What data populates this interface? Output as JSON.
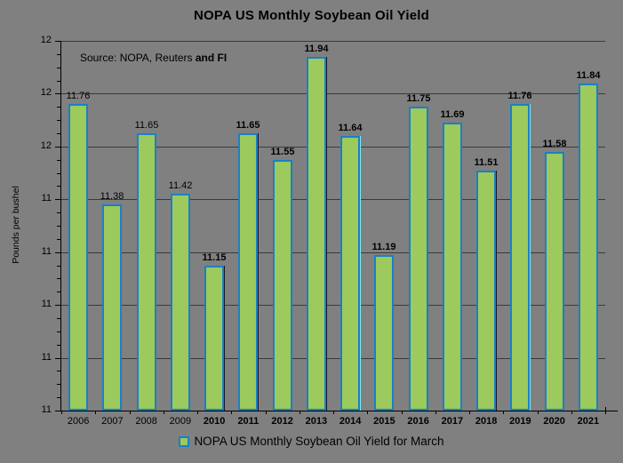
{
  "window": {
    "title": "NOPA US Monthly Soybean Oil Yield"
  },
  "chart_data": {
    "type": "bar",
    "title": "NOPA US Monthly Soybean Oil Yield",
    "categories": [
      "2006",
      "2007",
      "2008",
      "2009",
      "2010",
      "2011",
      "2012",
      "2013",
      "2014",
      "2015",
      "2016",
      "2017",
      "2018",
      "2019",
      "2020",
      "2021"
    ],
    "values": [
      11.76,
      11.38,
      11.65,
      11.42,
      11.15,
      11.65,
      11.55,
      11.94,
      11.64,
      11.19,
      11.75,
      11.69,
      11.51,
      11.76,
      11.58,
      11.84
    ],
    "series_name": "NOPA US Monthly Soybean Oil Yield for March",
    "xlabel": "",
    "ylabel": "Pounds per bushel",
    "ylim": [
      10.6,
      12.0
    ],
    "y_major_step": 0.2,
    "y_minor_step": 0.05,
    "y_tick_labels_top_to_bottom": [
      "12",
      "12",
      "12",
      "11",
      "11",
      "11",
      "11",
      "11"
    ],
    "grid": "horizontal-major-on",
    "data_labels": true,
    "data_label_bold_flags": [
      false,
      false,
      false,
      false,
      true,
      true,
      true,
      true,
      true,
      true,
      true,
      true,
      true,
      true,
      true,
      true
    ],
    "category_bold_flags": [
      false,
      false,
      false,
      false,
      true,
      true,
      true,
      true,
      true,
      true,
      true,
      true,
      true,
      true,
      true,
      true
    ],
    "bar_edge_artifacts": [
      "",
      "",
      "",
      "",
      "dark",
      "dark",
      "",
      "dark",
      "cyan",
      "",
      "",
      "",
      "dark",
      "cyan",
      "",
      ""
    ],
    "legend": {
      "position": "bottom",
      "label": "NOPA US Monthly Soybean Oil Yield for March"
    },
    "annotation": {
      "text_normal": "Source: NOPA, Reuters ",
      "text_bold": "and FI"
    }
  },
  "style": {
    "background": "#808080",
    "bar_fill": "#9CCA5C",
    "bar_border": "#1A80C6",
    "gridline_color": "#3a3a3a",
    "text_color": "#000000",
    "artifact_dark": "#15152a",
    "artifact_cyan": "#7fe8f4"
  }
}
